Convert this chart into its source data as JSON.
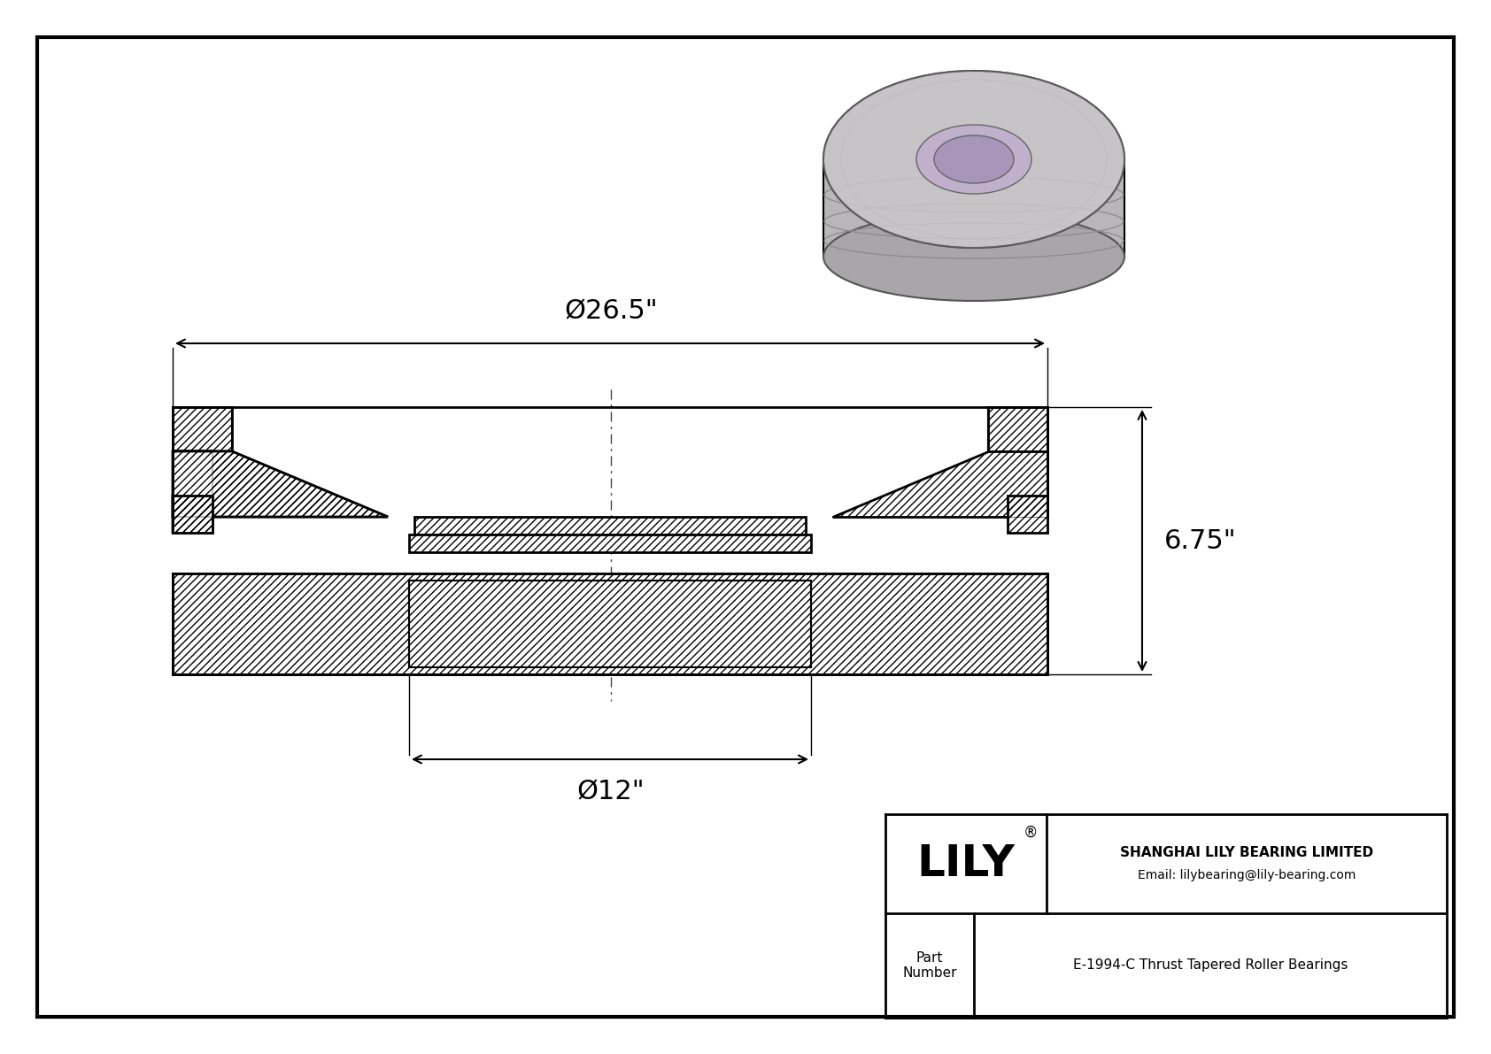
{
  "bg_color": "#ffffff",
  "line_color": "#000000",
  "title_company": "SHANGHAI LILY BEARING LIMITED",
  "title_email": "Email: lilybearing@lily-bearing.com",
  "part_label": "Part\nNumber",
  "part_number": "E-1994-C Thrust Tapered Roller Bearings",
  "brand": "LILY",
  "brand_registered": "®",
  "dim_outer": "Ø26.5\"",
  "dim_inner": "Ø12\"",
  "dim_height": "6.75\""
}
